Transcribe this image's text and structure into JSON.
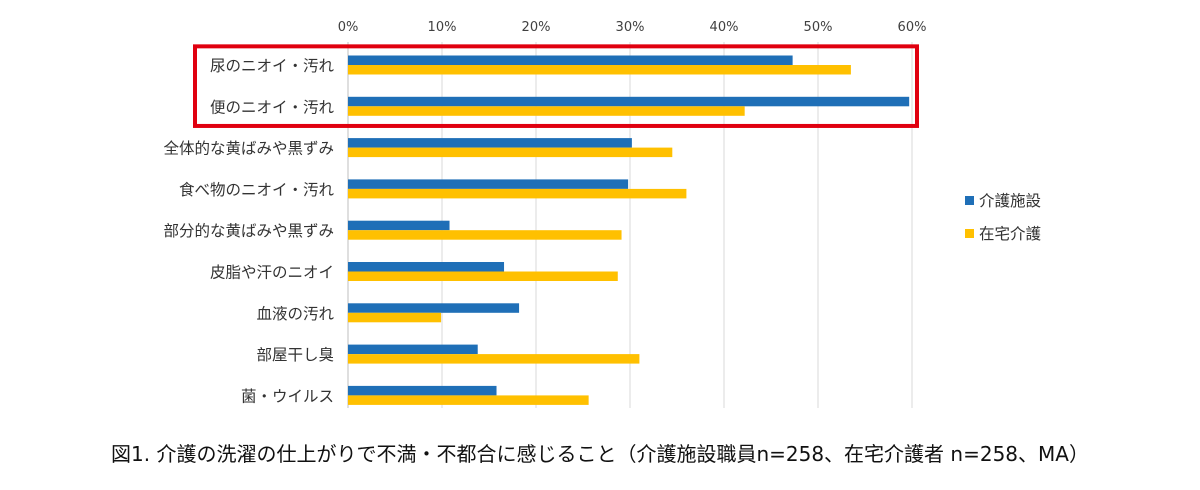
{
  "chart_data": {
    "type": "bar",
    "orientation": "horizontal",
    "caption": "図1. 介護の洗濯の仕上がりで不満・不都合に感じること（介護施設職員n=258、在宅介護者 n=258、MA）",
    "categories": [
      "尿のニオイ・汚れ",
      "便のニオイ・汚れ",
      "全体的な黄ばみや黒ずみ",
      "食べ物のニオイ・汚れ",
      "部分的な黄ばみや黒ずみ",
      "皮脂や汗のニオイ",
      "血液の汚れ",
      "部屋干し臭",
      "菌・ウイルス"
    ],
    "series": [
      {
        "name": "介護施設",
        "color": "#1f6fb7",
        "values": [
          47.3,
          59.7,
          30.2,
          29.8,
          10.8,
          16.6,
          18.2,
          13.8,
          15.8
        ]
      },
      {
        "name": "在宅介護",
        "color": "#ffc000",
        "values": [
          53.5,
          42.2,
          34.5,
          36.0,
          29.1,
          28.7,
          9.9,
          31.0,
          25.6
        ]
      }
    ],
    "x_ticks": [
      "0%",
      "10%",
      "20%",
      "30%",
      "40%",
      "50%",
      "60%"
    ],
    "xlim": [
      0,
      60
    ],
    "x_axis_position": "top",
    "grid": true,
    "legend_position": "right",
    "highlight": {
      "categories": [
        0,
        1
      ],
      "color": "#e0000f"
    }
  }
}
